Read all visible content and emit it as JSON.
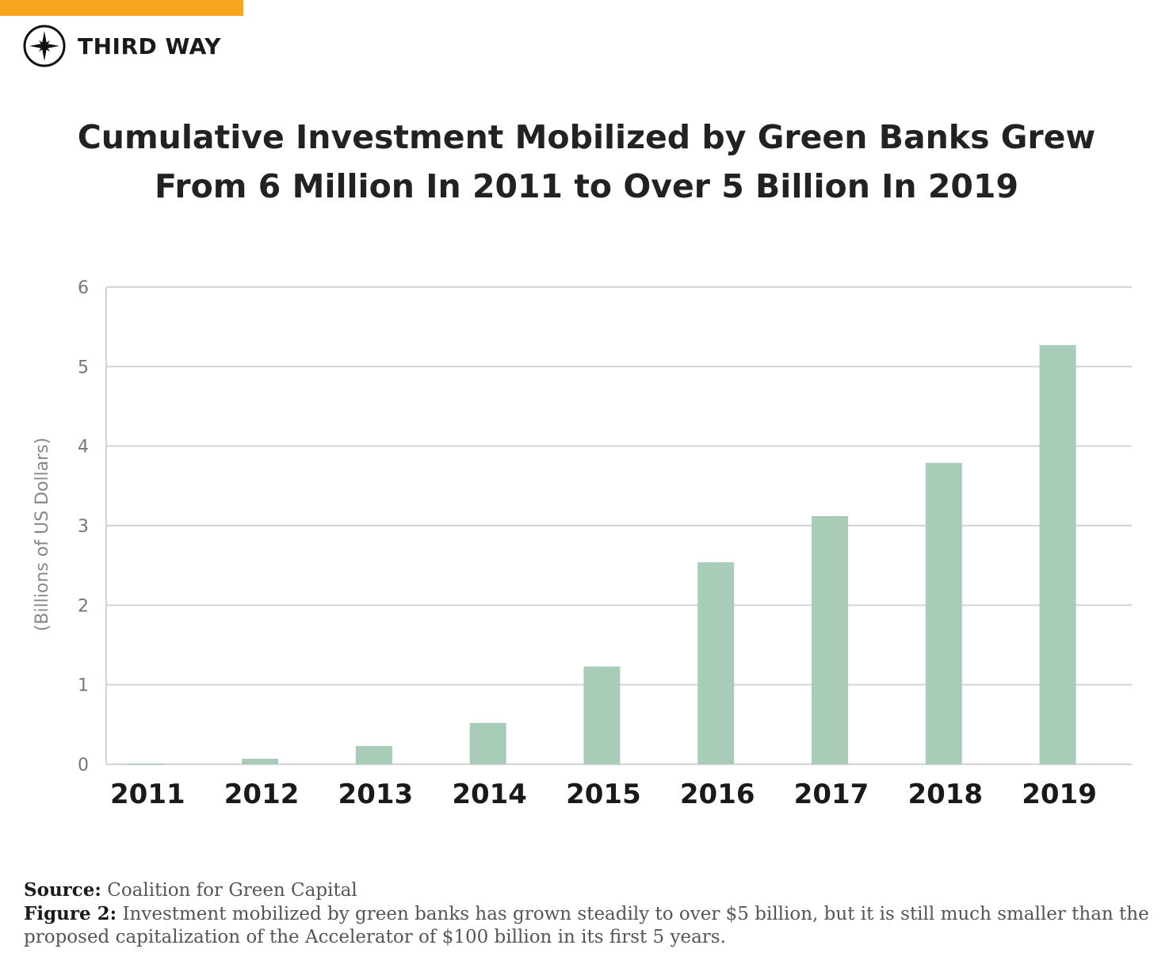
{
  "brand": {
    "name": "THIRD WAY",
    "accent_color": "#f9a51f",
    "icon": "compass-star-icon"
  },
  "title_lines": [
    "Cumulative Investment Mobilized by Green Banks Grew",
    "From 6 Million In 2011 to Over 5 Billion In 2019"
  ],
  "chart_data": {
    "type": "bar",
    "title": "Cumulative Investment Mobilized by Green Banks Grew From 6 Million In 2011 to Over 5 Billion In 2019",
    "categories": [
      "2011",
      "2012",
      "2013",
      "2014",
      "2015",
      "2016",
      "2017",
      "2018",
      "2019"
    ],
    "values": [
      0.006,
      0.07,
      0.23,
      0.52,
      1.23,
      2.54,
      3.12,
      3.79,
      5.27
    ],
    "xlabel": "",
    "ylabel": "(Billions of US Dollars)",
    "ylim": [
      0,
      6
    ],
    "yticks": [
      "0",
      "1",
      "2",
      "3",
      "4",
      "5",
      "6"
    ],
    "grid": true,
    "bar_color": "#a8ccb8",
    "grid_color": "#d4d4d4"
  },
  "footer": {
    "source_label": "Source:",
    "source_text": "Coalition for Green Capital",
    "figure_label": "Figure 2:",
    "figure_text": "Investment mobilized by green banks has grown steadily to over $5 billion, but it is still much smaller than the proposed capitalization of the Accelerator of $100 billion in its first 5 years."
  }
}
